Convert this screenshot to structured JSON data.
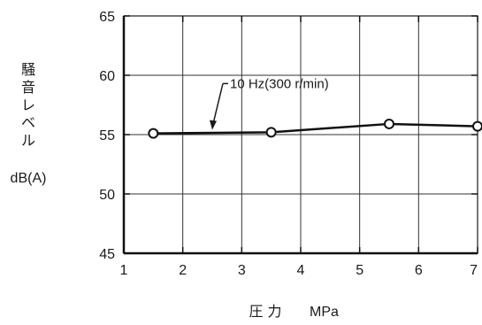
{
  "chart_data": {
    "type": "line",
    "title": "",
    "xlabel": {
      "jp": "圧 力",
      "unit": "MPa"
    },
    "ylabel": {
      "jp_chars": [
        "騒",
        "音",
        "レ",
        "ベ",
        "ル"
      ],
      "unit": "dB(A)"
    },
    "xlim": [
      1,
      7
    ],
    "ylim": [
      45,
      65
    ],
    "x_ticks": [
      1,
      2,
      3,
      4,
      5,
      6,
      7
    ],
    "y_ticks": [
      45,
      50,
      55,
      60,
      65
    ],
    "grid": true,
    "series": [
      {
        "name": "10 Hz(300 r/min)",
        "x": [
          1.5,
          3.5,
          5.5,
          7.0
        ],
        "y": [
          55.1,
          55.2,
          55.9,
          55.7
        ]
      }
    ],
    "annotation": {
      "text": "10 Hz(300 r/min)",
      "points_to": {
        "x": 2.5,
        "y": 55.1
      }
    }
  }
}
